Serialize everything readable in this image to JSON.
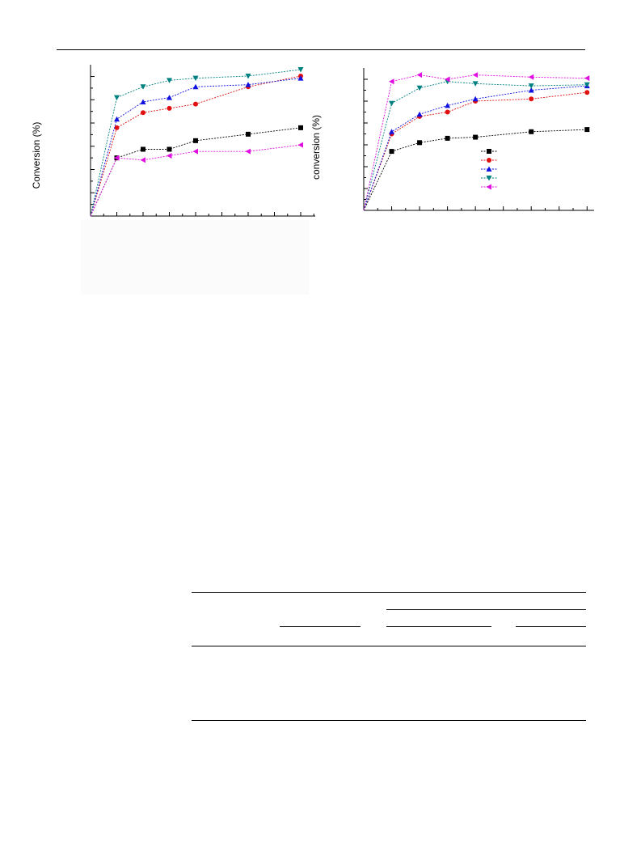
{
  "chart_data": [
    {
      "type": "line",
      "ylabel": "Conversion (%)",
      "x": [
        0,
        1,
        2,
        3,
        4,
        6,
        8
      ],
      "xlim": [
        0,
        8.8
      ],
      "ylim": [
        0,
        65
      ],
      "series": [
        {
          "color": "#000000",
          "marker": "square",
          "values": [
            0,
            27,
            31,
            31,
            35,
            38,
            41
          ]
        },
        {
          "color": "#e01010",
          "marker": "circle",
          "values": [
            0,
            41,
            48,
            50,
            52,
            60,
            65
          ]
        },
        {
          "color": "#1010e0",
          "marker": "triangle-up",
          "values": [
            0,
            45,
            53,
            55,
            60,
            61,
            64
          ]
        },
        {
          "color": "#008080",
          "marker": "triangle-down",
          "values": [
            0,
            55,
            60,
            63,
            64,
            65,
            68
          ]
        },
        {
          "color": "#e010e0",
          "marker": "triangle-left",
          "values": [
            0,
            27,
            26,
            28,
            30,
            30,
            33
          ]
        }
      ],
      "grid": false
    },
    {
      "type": "line",
      "ylabel": "conversion (%)",
      "x": [
        0,
        1,
        2,
        3,
        4,
        6,
        8
      ],
      "xlim": [
        0,
        8.6
      ],
      "ylim": [
        0,
        60
      ],
      "legend": "middle-right",
      "series": [
        {
          "color": "#000000",
          "marker": "square",
          "values": [
            0,
            27,
            31,
            33,
            33.5,
            36,
            37
          ]
        },
        {
          "color": "#e01010",
          "marker": "circle",
          "values": [
            0,
            35,
            43,
            45,
            50,
            51,
            54
          ]
        },
        {
          "color": "#1010e0",
          "marker": "triangle-up",
          "values": [
            0,
            36,
            44,
            48,
            51,
            55,
            57
          ]
        },
        {
          "color": "#008080",
          "marker": "triangle-down",
          "values": [
            0,
            49,
            56,
            59,
            58,
            57,
            57.5
          ]
        },
        {
          "color": "#e010e0",
          "marker": "triangle-left",
          "values": [
            0,
            59,
            62,
            60,
            62,
            61,
            60.5
          ]
        }
      ],
      "grid": false
    }
  ]
}
